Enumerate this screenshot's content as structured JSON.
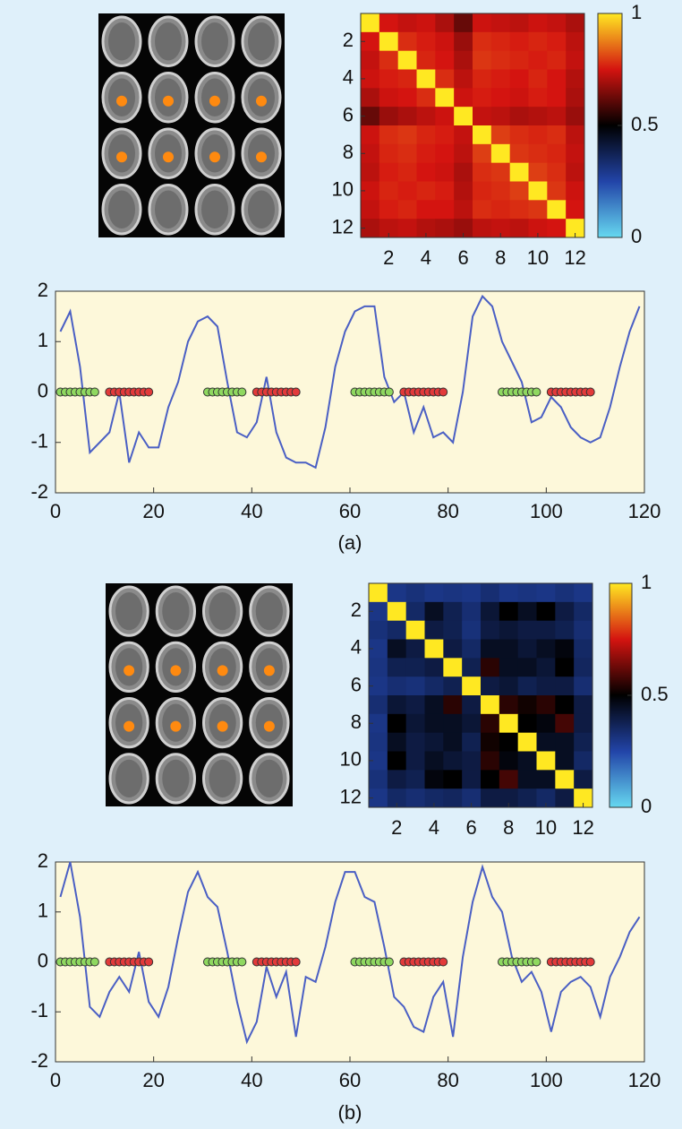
{
  "chart_data": [
    {
      "type": "heatmap",
      "matrix": [
        [
          1,
          0.75,
          0.73,
          0.74,
          0.7,
          0.62,
          0.74,
          0.73,
          0.72,
          0.74,
          0.73,
          0.7
        ],
        [
          0.75,
          1,
          0.78,
          0.76,
          0.74,
          0.68,
          0.78,
          0.77,
          0.76,
          0.77,
          0.76,
          0.72
        ],
        [
          0.73,
          0.78,
          1,
          0.77,
          0.75,
          0.7,
          0.79,
          0.78,
          0.77,
          0.76,
          0.77,
          0.73
        ],
        [
          0.74,
          0.76,
          0.77,
          1,
          0.78,
          0.72,
          0.77,
          0.76,
          0.75,
          0.77,
          0.75,
          0.71
        ],
        [
          0.7,
          0.74,
          0.75,
          0.78,
          1,
          0.74,
          0.76,
          0.75,
          0.74,
          0.76,
          0.75,
          0.7
        ],
        [
          0.62,
          0.68,
          0.7,
          0.72,
          0.74,
          1,
          0.73,
          0.72,
          0.7,
          0.71,
          0.72,
          0.68
        ],
        [
          0.74,
          0.78,
          0.79,
          0.77,
          0.76,
          0.73,
          1,
          0.8,
          0.78,
          0.77,
          0.78,
          0.72
        ],
        [
          0.73,
          0.77,
          0.78,
          0.76,
          0.75,
          0.72,
          0.8,
          1,
          0.79,
          0.78,
          0.77,
          0.73
        ],
        [
          0.72,
          0.76,
          0.77,
          0.75,
          0.74,
          0.7,
          0.78,
          0.79,
          1,
          0.8,
          0.78,
          0.72
        ],
        [
          0.74,
          0.77,
          0.76,
          0.77,
          0.76,
          0.71,
          0.77,
          0.78,
          0.8,
          1,
          0.79,
          0.74
        ],
        [
          0.73,
          0.76,
          0.77,
          0.75,
          0.75,
          0.72,
          0.78,
          0.77,
          0.78,
          0.79,
          1,
          0.75
        ],
        [
          0.7,
          0.72,
          0.73,
          0.71,
          0.7,
          0.68,
          0.72,
          0.73,
          0.72,
          0.74,
          0.75,
          1
        ]
      ],
      "xlim": [
        0.5,
        12.5
      ],
      "ylim": [
        0.5,
        12.5
      ],
      "xticks": [
        2,
        4,
        6,
        8,
        10,
        12
      ],
      "yticks": [
        2,
        4,
        6,
        8,
        10,
        12
      ],
      "colormap": [
        "#66d8f0",
        "#2244a8",
        "#000000",
        "#d41410",
        "#ffe822"
      ],
      "clim": [
        0,
        1
      ],
      "cticks": [
        0,
        0.5,
        1
      ]
    },
    {
      "type": "line",
      "caption": "(a)",
      "xlim": [
        0,
        120
      ],
      "ylim": [
        -2,
        2
      ],
      "xticks": [
        0,
        20,
        40,
        60,
        80,
        100,
        120
      ],
      "yticks": [
        -2,
        -1,
        0,
        1,
        2
      ],
      "series": [
        {
          "style": "line",
          "color": "#4a5fc4",
          "x": [
            1,
            3,
            5,
            7,
            9,
            11,
            13,
            15,
            17,
            19,
            21,
            23,
            25,
            27,
            29,
            31,
            33,
            35,
            37,
            39,
            41,
            43,
            45,
            47,
            49,
            51,
            53,
            55,
            57,
            59,
            61,
            63,
            65,
            67,
            69,
            71,
            73,
            75,
            77,
            79,
            81,
            83,
            85,
            87,
            89,
            91,
            93,
            95,
            97,
            99,
            101,
            103,
            105,
            107,
            109,
            111,
            113,
            115,
            117,
            119
          ],
          "values": [
            1.2,
            1.6,
            0.5,
            -1.2,
            -1.0,
            -0.8,
            0.0,
            -1.4,
            -0.8,
            -1.1,
            -1.1,
            -0.3,
            0.2,
            1.0,
            1.4,
            1.5,
            1.3,
            0.2,
            -0.8,
            -0.9,
            -0.6,
            0.3,
            -0.8,
            -1.3,
            -1.4,
            -1.4,
            -1.5,
            -0.7,
            0.5,
            1.2,
            1.6,
            1.7,
            1.7,
            0.3,
            -0.2,
            0.0,
            -0.8,
            -0.3,
            -0.9,
            -0.8,
            -1.0,
            0.0,
            1.5,
            1.9,
            1.7,
            1.0,
            0.6,
            0.2,
            -0.6,
            -0.5,
            -0.1,
            -0.3,
            -0.7,
            -0.9,
            -1.0,
            -0.9,
            -0.3,
            0.5,
            1.2,
            1.7
          ]
        },
        {
          "style": "markers",
          "color": "#8fd860",
          "x": [
            1,
            2,
            3,
            4,
            5,
            6,
            7,
            8,
            31,
            32,
            33,
            34,
            35,
            36,
            37,
            38,
            61,
            62,
            63,
            64,
            65,
            66,
            67,
            68,
            91,
            92,
            93,
            94,
            95,
            96,
            97,
            98
          ],
          "values": [
            0,
            0,
            0,
            0,
            0,
            0,
            0,
            0,
            0,
            0,
            0,
            0,
            0,
            0,
            0,
            0,
            0,
            0,
            0,
            0,
            0,
            0,
            0,
            0,
            0,
            0,
            0,
            0,
            0,
            0,
            0,
            0
          ]
        },
        {
          "style": "markers",
          "color": "#e23a3a",
          "x": [
            11,
            12,
            13,
            14,
            15,
            16,
            17,
            18,
            19,
            41,
            42,
            43,
            44,
            45,
            46,
            47,
            48,
            49,
            71,
            72,
            73,
            74,
            75,
            76,
            77,
            78,
            79,
            101,
            102,
            103,
            104,
            105,
            106,
            107,
            108,
            109
          ],
          "values": [
            0,
            0,
            0,
            0,
            0,
            0,
            0,
            0,
            0,
            0,
            0,
            0,
            0,
            0,
            0,
            0,
            0,
            0,
            0,
            0,
            0,
            0,
            0,
            0,
            0,
            0,
            0,
            0,
            0,
            0,
            0,
            0,
            0,
            0,
            0,
            0
          ]
        }
      ]
    },
    {
      "type": "heatmap",
      "matrix": [
        [
          1,
          0.3,
          0.32,
          0.3,
          0.31,
          0.3,
          0.33,
          0.3,
          0.31,
          0.3,
          0.32,
          0.3
        ],
        [
          0.3,
          1,
          0.35,
          0.45,
          0.38,
          0.33,
          0.42,
          0.5,
          0.45,
          0.5,
          0.4,
          0.35
        ],
        [
          0.32,
          0.35,
          1,
          0.4,
          0.38,
          0.32,
          0.4,
          0.42,
          0.4,
          0.4,
          0.38,
          0.33
        ],
        [
          0.3,
          0.45,
          0.4,
          1,
          0.4,
          0.35,
          0.45,
          0.45,
          0.42,
          0.45,
          0.48,
          0.35
        ],
        [
          0.31,
          0.38,
          0.38,
          0.4,
          1,
          0.38,
          0.55,
          0.45,
          0.45,
          0.42,
          0.5,
          0.36
        ],
        [
          0.3,
          0.33,
          0.32,
          0.35,
          0.38,
          1,
          0.4,
          0.42,
          0.38,
          0.4,
          0.4,
          0.33
        ],
        [
          0.33,
          0.42,
          0.4,
          0.45,
          0.55,
          0.4,
          1,
          0.55,
          0.52,
          0.55,
          0.5,
          0.4
        ],
        [
          0.3,
          0.5,
          0.42,
          0.45,
          0.45,
          0.42,
          0.55,
          1,
          0.5,
          0.48,
          0.58,
          0.4
        ],
        [
          0.31,
          0.45,
          0.4,
          0.42,
          0.45,
          0.38,
          0.52,
          0.5,
          1,
          0.45,
          0.45,
          0.38
        ],
        [
          0.3,
          0.5,
          0.4,
          0.45,
          0.42,
          0.4,
          0.55,
          0.48,
          0.45,
          1,
          0.45,
          0.35
        ],
        [
          0.32,
          0.4,
          0.38,
          0.48,
          0.5,
          0.4,
          0.5,
          0.58,
          0.45,
          0.45,
          1,
          0.4
        ],
        [
          0.3,
          0.35,
          0.33,
          0.35,
          0.36,
          0.33,
          0.4,
          0.4,
          0.38,
          0.35,
          0.4,
          1
        ]
      ],
      "xlim": [
        0.5,
        12.5
      ],
      "ylim": [
        0.5,
        12.5
      ],
      "xticks": [
        2,
        4,
        6,
        8,
        10,
        12
      ],
      "yticks": [
        2,
        4,
        6,
        8,
        10,
        12
      ],
      "colormap": [
        "#66d8f0",
        "#2244a8",
        "#000000",
        "#d41410",
        "#ffe822"
      ],
      "clim": [
        0,
        1
      ],
      "cticks": [
        0,
        0.5,
        1
      ]
    },
    {
      "type": "line",
      "caption": "(b)",
      "xlim": [
        0,
        120
      ],
      "ylim": [
        -2,
        2
      ],
      "xticks": [
        0,
        20,
        40,
        60,
        80,
        100,
        120
      ],
      "yticks": [
        -2,
        -1,
        0,
        1,
        2
      ],
      "series": [
        {
          "style": "line",
          "color": "#4a5fc4",
          "x": [
            1,
            3,
            5,
            7,
            9,
            11,
            13,
            15,
            17,
            19,
            21,
            23,
            25,
            27,
            29,
            31,
            33,
            35,
            37,
            39,
            41,
            43,
            45,
            47,
            49,
            51,
            53,
            55,
            57,
            59,
            61,
            63,
            65,
            67,
            69,
            71,
            73,
            75,
            77,
            79,
            81,
            83,
            85,
            87,
            89,
            91,
            93,
            95,
            97,
            99,
            101,
            103,
            105,
            107,
            109,
            111,
            113,
            115,
            117,
            119
          ],
          "values": [
            1.3,
            2.0,
            0.9,
            -0.9,
            -1.1,
            -0.6,
            -0.3,
            -0.6,
            0.2,
            -0.8,
            -1.1,
            -0.5,
            0.5,
            1.4,
            1.8,
            1.3,
            1.1,
            0.2,
            -0.8,
            -1.6,
            -1.2,
            -0.1,
            -0.7,
            -0.2,
            -1.5,
            -0.3,
            -0.4,
            0.3,
            1.2,
            1.8,
            1.8,
            1.3,
            1.2,
            0.3,
            -0.7,
            -0.9,
            -1.3,
            -1.4,
            -0.7,
            -0.4,
            -1.5,
            0.1,
            1.2,
            1.9,
            1.3,
            1.0,
            0.1,
            -0.4,
            -0.2,
            -0.6,
            -1.4,
            -0.6,
            -0.4,
            -0.3,
            -0.5,
            -1.1,
            -0.3,
            0.1,
            0.6,
            0.9
          ]
        },
        {
          "style": "markers",
          "color": "#8fd860",
          "x": [
            1,
            2,
            3,
            4,
            5,
            6,
            7,
            8,
            31,
            32,
            33,
            34,
            35,
            36,
            37,
            38,
            61,
            62,
            63,
            64,
            65,
            66,
            67,
            68,
            91,
            92,
            93,
            94,
            95,
            96,
            97,
            98
          ],
          "values": [
            0,
            0,
            0,
            0,
            0,
            0,
            0,
            0,
            0,
            0,
            0,
            0,
            0,
            0,
            0,
            0,
            0,
            0,
            0,
            0,
            0,
            0,
            0,
            0,
            0,
            0,
            0,
            0,
            0,
            0,
            0,
            0
          ]
        },
        {
          "style": "markers",
          "color": "#e23a3a",
          "x": [
            11,
            12,
            13,
            14,
            15,
            16,
            17,
            18,
            19,
            41,
            42,
            43,
            44,
            45,
            46,
            47,
            48,
            49,
            71,
            72,
            73,
            74,
            75,
            76,
            77,
            78,
            79,
            101,
            102,
            103,
            104,
            105,
            106,
            107,
            108,
            109
          ],
          "values": [
            0,
            0,
            0,
            0,
            0,
            0,
            0,
            0,
            0,
            0,
            0,
            0,
            0,
            0,
            0,
            0,
            0,
            0,
            0,
            0,
            0,
            0,
            0,
            0,
            0,
            0,
            0,
            0,
            0,
            0,
            0,
            0,
            0,
            0,
            0,
            0
          ]
        }
      ]
    }
  ]
}
